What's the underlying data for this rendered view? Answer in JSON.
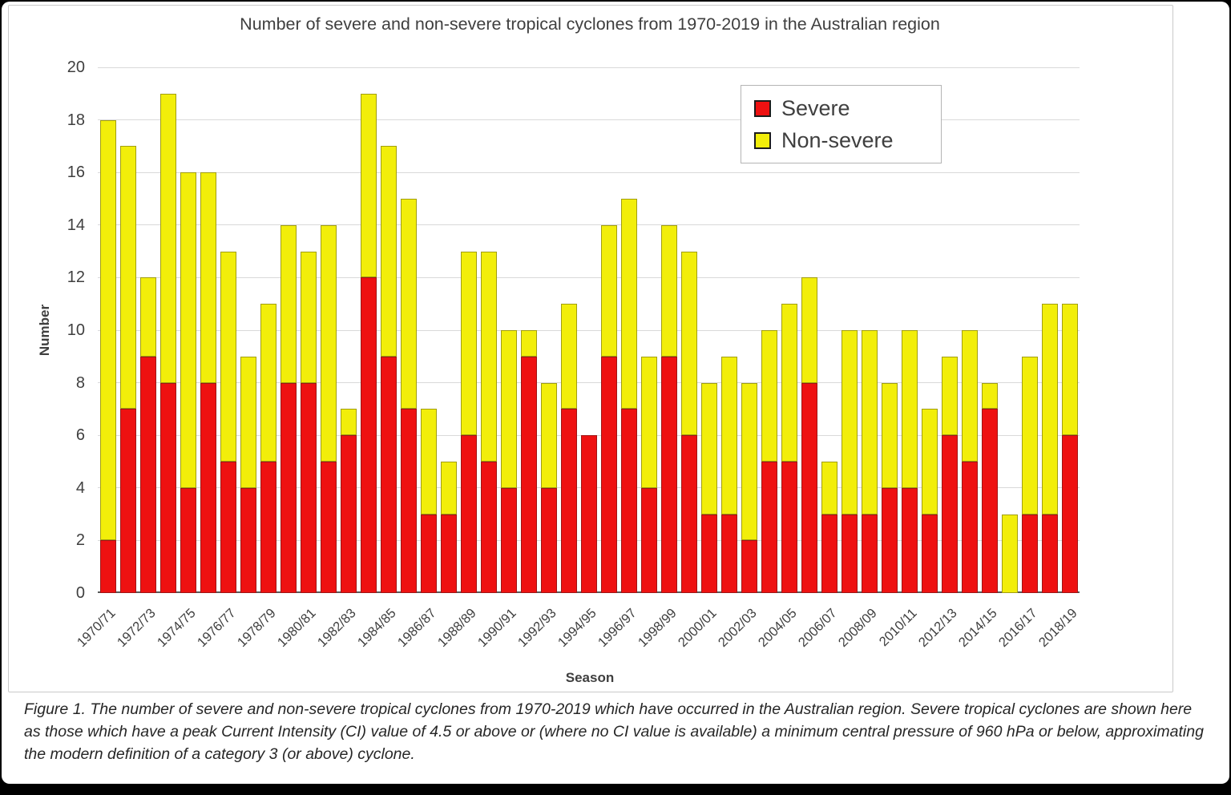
{
  "chart": {
    "title": "Number of severe and non-severe tropical cyclones from 1970-2019 in the Australian region",
    "ylabel": "Number",
    "xlabel": "Season"
  },
  "chart_data": {
    "type": "bar",
    "stacked": true,
    "title": "Number of severe and non-severe tropical cyclones from 1970-2019 in the Australian region",
    "xlabel": "Season",
    "ylabel": "Number",
    "ylim": [
      0,
      20
    ],
    "ytick_step": 2,
    "grid": "horizontal",
    "legend_position": "top-right-inside",
    "label_every": 2,
    "categories": [
      "1970/71",
      "1971/72",
      "1972/73",
      "1973/74",
      "1974/75",
      "1975/76",
      "1976/77",
      "1977/78",
      "1978/79",
      "1979/80",
      "1980/81",
      "1981/82",
      "1982/83",
      "1983/84",
      "1984/85",
      "1985/86",
      "1986/87",
      "1987/88",
      "1988/89",
      "1989/90",
      "1990/91",
      "1991/92",
      "1992/93",
      "1993/94",
      "1994/95",
      "1995/96",
      "1996/97",
      "1997/98",
      "1998/99",
      "1999/00",
      "2000/01",
      "2001/02",
      "2002/03",
      "2003/04",
      "2004/05",
      "2005/06",
      "2006/07",
      "2007/08",
      "2008/09",
      "2009/10",
      "2010/11",
      "2011/12",
      "2012/13",
      "2013/14",
      "2014/15",
      "2015/16",
      "2016/17",
      "2017/18",
      "2018/19"
    ],
    "series": [
      {
        "name": "Severe",
        "color": "#ee1111",
        "values": [
          2,
          7,
          9,
          8,
          4,
          8,
          5,
          4,
          5,
          8,
          8,
          5,
          6,
          12,
          9,
          7,
          3,
          3,
          6,
          5,
          4,
          9,
          4,
          7,
          6,
          9,
          7,
          4,
          9,
          6,
          3,
          3,
          2,
          5,
          5,
          8,
          3,
          3,
          3,
          4,
          4,
          3,
          6,
          5,
          7,
          0,
          3,
          3,
          6
        ]
      },
      {
        "name": "Non-severe",
        "color": "#f2ee0a",
        "values": [
          16,
          10,
          3,
          11,
          12,
          8,
          8,
          5,
          6,
          6,
          5,
          9,
          1,
          7,
          8,
          8,
          4,
          2,
          7,
          8,
          6,
          1,
          4,
          4,
          0,
          5,
          8,
          5,
          5,
          7,
          5,
          6,
          6,
          5,
          6,
          4,
          2,
          7,
          7,
          4,
          6,
          4,
          3,
          5,
          1,
          3,
          6,
          8,
          5
        ]
      }
    ]
  },
  "caption": "Figure 1. The number of severe and non-severe tropical cyclones from 1970-2019 which have occurred in the Australian region. Severe tropical cyclones are shown here as those which have a peak Current Intensity (CI) value of 4.5 or above or (where no CI value is available) a minimum central pressure of 960 hPa or below, approximating the modern definition of a category 3 (or above) cyclone."
}
